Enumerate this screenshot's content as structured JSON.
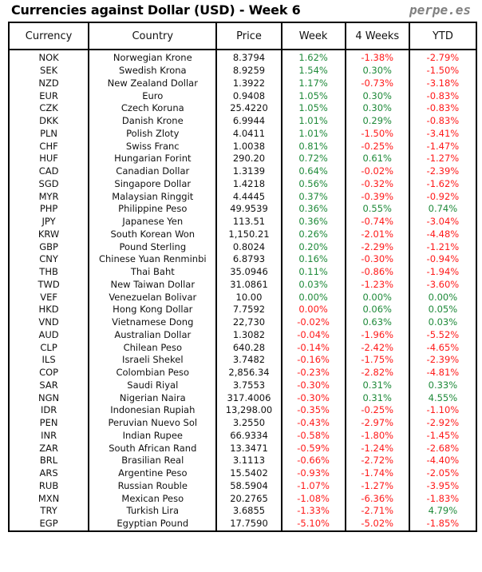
{
  "title": "Currencies against Dollar (USD) - Week 6",
  "brand": "perpe.es",
  "colors": {
    "up": "#1f8a3a",
    "down": "#ff1a1a"
  },
  "headers": [
    "Currency",
    "Country",
    "Price",
    "Week",
    "4 Weeks",
    "YTD"
  ],
  "rows": [
    [
      "NOK",
      "Norwegian Krone",
      "8.3794",
      "1.62%",
      "-1.38%",
      "-2.79%",
      "GRR"
    ],
    [
      "SEK",
      "Swedish Krona",
      "8.9259",
      "1.54%",
      "0.30%",
      "-1.50%",
      "GGR"
    ],
    [
      "NZD",
      "New Zealand Dollar",
      "1.3922",
      "1.17%",
      "-0.73%",
      "-3.18%",
      "GRR"
    ],
    [
      "EUR",
      "Euro",
      "0.9408",
      "1.05%",
      "0.30%",
      "-0.83%",
      "GGR"
    ],
    [
      "CZK",
      "Czech Koruna",
      "25.4220",
      "1.05%",
      "0.30%",
      "-0.83%",
      "GGR"
    ],
    [
      "DKK",
      "Danish Krone",
      "6.9944",
      "1.01%",
      "0.29%",
      "-0.83%",
      "GGR"
    ],
    [
      "PLN",
      "Polish Zloty",
      "4.0411",
      "1.01%",
      "-1.50%",
      "-3.41%",
      "GRR"
    ],
    [
      "CHF",
      "Swiss Franc",
      "1.0038",
      "0.81%",
      "-0.25%",
      "-1.47%",
      "GRR"
    ],
    [
      "HUF",
      "Hungarian Forint",
      "290.20",
      "0.72%",
      "0.61%",
      "-1.27%",
      "GGR"
    ],
    [
      "CAD",
      "Canadian Dollar",
      "1.3139",
      "0.64%",
      "-0.02%",
      "-2.39%",
      "GRR"
    ],
    [
      "SGD",
      "Singapore Dollar",
      "1.4218",
      "0.56%",
      "-0.32%",
      "-1.62%",
      "GRR"
    ],
    [
      "MYR",
      "Malaysian Ringgit",
      "4.4445",
      "0.37%",
      "-0.39%",
      "-0.92%",
      "GRR"
    ],
    [
      "PHP",
      "Philippine Peso",
      "49.9539",
      "0.36%",
      "0.55%",
      "0.74%",
      "GGG"
    ],
    [
      "JPY",
      "Japanese Yen",
      "113.51",
      "0.36%",
      "-0.74%",
      "-3.04%",
      "GRR"
    ],
    [
      "KRW",
      "South Korean Won",
      "1,150.21",
      "0.26%",
      "-2.01%",
      "-4.48%",
      "GRR"
    ],
    [
      "GBP",
      "Pound Sterling",
      "0.8024",
      "0.20%",
      "-2.29%",
      "-1.21%",
      "GRR"
    ],
    [
      "CNY",
      "Chinese Yuan Renminbi",
      "6.8793",
      "0.16%",
      "-0.30%",
      "-0.94%",
      "GRR"
    ],
    [
      "THB",
      "Thai Baht",
      "35.0946",
      "0.11%",
      "-0.86%",
      "-1.94%",
      "GRR"
    ],
    [
      "TWD",
      "New Taiwan Dollar",
      "31.0861",
      "0.03%",
      "-1.23%",
      "-3.60%",
      "GRR"
    ],
    [
      "VEF",
      "Venezuelan Bolivar",
      "10.00",
      "0.00%",
      "0.00%",
      "0.00%",
      "GGG"
    ],
    [
      "HKD",
      "Hong Kong Dollar",
      "7.7592",
      "0.00%",
      "0.06%",
      "0.05%",
      "RGG"
    ],
    [
      "VND",
      "Vietnamese Dong",
      "22,730",
      "-0.02%",
      "0.63%",
      "0.03%",
      "RGG"
    ],
    [
      "AUD",
      "Australian Dollar",
      "1.3082",
      "-0.04%",
      "-1.96%",
      "-5.52%",
      "RRR"
    ],
    [
      "CLP",
      "Chilean Peso",
      "640.28",
      "-0.14%",
      "-2.42%",
      "-4.65%",
      "RRR"
    ],
    [
      "ILS",
      "Israeli Shekel",
      "3.7482",
      "-0.16%",
      "-1.75%",
      "-2.39%",
      "RRR"
    ],
    [
      "COP",
      "Colombian Peso",
      "2,856.34",
      "-0.23%",
      "-2.82%",
      "-4.81%",
      "RRR"
    ],
    [
      "SAR",
      "Saudi Riyal",
      "3.7553",
      "-0.30%",
      "0.31%",
      "0.33%",
      "RGG"
    ],
    [
      "NGN",
      "Nigerian Naira",
      "317.4006",
      "-0.30%",
      "0.31%",
      "4.55%",
      "RGG"
    ],
    [
      "IDR",
      "Indonesian Rupiah",
      "13,298.00",
      "-0.35%",
      "-0.25%",
      "-1.10%",
      "RRR"
    ],
    [
      "PEN",
      "Peruvian Nuevo Sol",
      "3.2550",
      "-0.43%",
      "-2.97%",
      "-2.92%",
      "RRR"
    ],
    [
      "INR",
      "Indian Rupee",
      "66.9334",
      "-0.58%",
      "-1.80%",
      "-1.45%",
      "RRR"
    ],
    [
      "ZAR",
      "South African Rand",
      "13.3471",
      "-0.59%",
      "-1.24%",
      "-2.68%",
      "RRR"
    ],
    [
      "BRL",
      "Brasilian Real",
      "3.1113",
      "-0.66%",
      "-2.72%",
      "-4.40%",
      "RRR"
    ],
    [
      "ARS",
      "Argentine Peso",
      "15.5402",
      "-0.93%",
      "-1.74%",
      "-2.05%",
      "RRR"
    ],
    [
      "RUB",
      "Russian Rouble",
      "58.5904",
      "-1.07%",
      "-1.27%",
      "-3.95%",
      "RRR"
    ],
    [
      "MXN",
      "Mexican Peso",
      "20.2765",
      "-1.08%",
      "-6.36%",
      "-1.83%",
      "RRR"
    ],
    [
      "TRY",
      "Turkish Lira",
      "3.6855",
      "-1.33%",
      "-2.71%",
      "4.79%",
      "RRG"
    ],
    [
      "EGP",
      "Egyptian Pound",
      "17.7590",
      "-5.10%",
      "-5.02%",
      "-1.85%",
      "RRR"
    ]
  ]
}
